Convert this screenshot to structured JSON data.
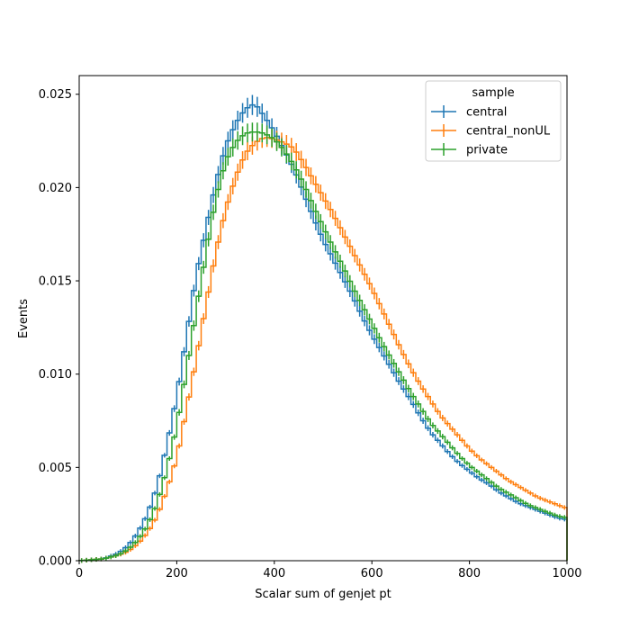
{
  "chart_data": {
    "type": "line",
    "xlabel": "Scalar sum of genjet pt",
    "ylabel": "Events",
    "xlim": [
      0,
      1000
    ],
    "ylim": [
      0,
      0.026
    ],
    "x_ticks": [
      "0",
      "200",
      "400",
      "600",
      "800",
      "1000"
    ],
    "y_ticks": [
      "0.000",
      "0.005",
      "0.010",
      "0.015",
      "0.020",
      "0.025"
    ],
    "grid": false,
    "legend": {
      "title": "sample",
      "placement": "top-right"
    },
    "bin_width": 10,
    "series": [
      {
        "name": "central",
        "color": "#1f77b4",
        "x_knots": [
          0,
          50,
          80,
          100,
          120,
          140,
          160,
          180,
          200,
          220,
          240,
          260,
          280,
          300,
          320,
          340,
          360,
          380,
          400,
          420,
          440,
          460,
          480,
          500,
          520,
          540,
          560,
          580,
          600,
          620,
          640,
          660,
          680,
          700,
          720,
          740,
          760,
          780,
          800,
          820,
          840,
          860,
          880,
          900,
          920,
          940,
          960,
          980,
          1000
        ],
        "y_knots": [
          0,
          0.0001,
          0.0004,
          0.0008,
          0.0015,
          0.0025,
          0.004,
          0.0062,
          0.0088,
          0.012,
          0.0153,
          0.0178,
          0.0202,
          0.0222,
          0.0234,
          0.0242,
          0.0245,
          0.0238,
          0.023,
          0.022,
          0.021,
          0.0197,
          0.0184,
          0.0172,
          0.0162,
          0.0152,
          0.0142,
          0.0131,
          0.0121,
          0.0112,
          0.0103,
          0.0094,
          0.0086,
          0.0077,
          0.0069,
          0.0063,
          0.0057,
          0.0052,
          0.0048,
          0.0044,
          0.0041,
          0.0037,
          0.0034,
          0.0031,
          0.0029,
          0.0027,
          0.0025,
          0.0023,
          0.0022
        ]
      },
      {
        "name": "central_nonUL",
        "color": "#ff7f0e",
        "x_knots": [
          0,
          50,
          80,
          100,
          120,
          140,
          160,
          180,
          200,
          220,
          240,
          260,
          280,
          300,
          320,
          340,
          360,
          380,
          400,
          420,
          440,
          460,
          480,
          500,
          520,
          540,
          560,
          580,
          600,
          620,
          640,
          660,
          680,
          700,
          720,
          740,
          760,
          780,
          800,
          820,
          840,
          860,
          880,
          900,
          920,
          940,
          960,
          980,
          1000
        ],
        "y_knots": [
          0,
          0.0001,
          0.0003,
          0.0005,
          0.0009,
          0.0015,
          0.0024,
          0.0038,
          0.0055,
          0.0081,
          0.0108,
          0.0137,
          0.0165,
          0.0188,
          0.0205,
          0.0218,
          0.0224,
          0.0227,
          0.0226,
          0.0224,
          0.0221,
          0.0213,
          0.0204,
          0.0195,
          0.0186,
          0.0176,
          0.0166,
          0.0156,
          0.0146,
          0.0135,
          0.0124,
          0.0113,
          0.0103,
          0.0094,
          0.0086,
          0.0078,
          0.0072,
          0.0066,
          0.006,
          0.0055,
          0.0051,
          0.0047,
          0.0043,
          0.004,
          0.0037,
          0.0034,
          0.0032,
          0.003,
          0.0028
        ]
      },
      {
        "name": "private",
        "color": "#2ca02c",
        "x_knots": [
          0,
          50,
          80,
          100,
          120,
          140,
          160,
          180,
          200,
          220,
          240,
          260,
          280,
          300,
          320,
          340,
          360,
          380,
          400,
          420,
          440,
          460,
          480,
          500,
          520,
          540,
          560,
          580,
          600,
          620,
          640,
          660,
          680,
          700,
          720,
          740,
          760,
          780,
          800,
          820,
          840,
          860,
          880,
          900,
          920,
          940,
          960,
          980,
          1000
        ],
        "y_knots": [
          0,
          0.0001,
          0.0003,
          0.0006,
          0.0011,
          0.0019,
          0.0031,
          0.0049,
          0.0072,
          0.0102,
          0.0134,
          0.0165,
          0.0194,
          0.0214,
          0.0224,
          0.0229,
          0.023,
          0.0229,
          0.0226,
          0.022,
          0.0212,
          0.0202,
          0.019,
          0.0179,
          0.0168,
          0.0158,
          0.0147,
          0.0137,
          0.0127,
          0.0117,
          0.0108,
          0.0099,
          0.009,
          0.0082,
          0.0074,
          0.0068,
          0.0062,
          0.0056,
          0.0051,
          0.0047,
          0.0043,
          0.0039,
          0.0036,
          0.0033,
          0.003,
          0.0028,
          0.0026,
          0.0024,
          0.0023
        ]
      }
    ]
  }
}
